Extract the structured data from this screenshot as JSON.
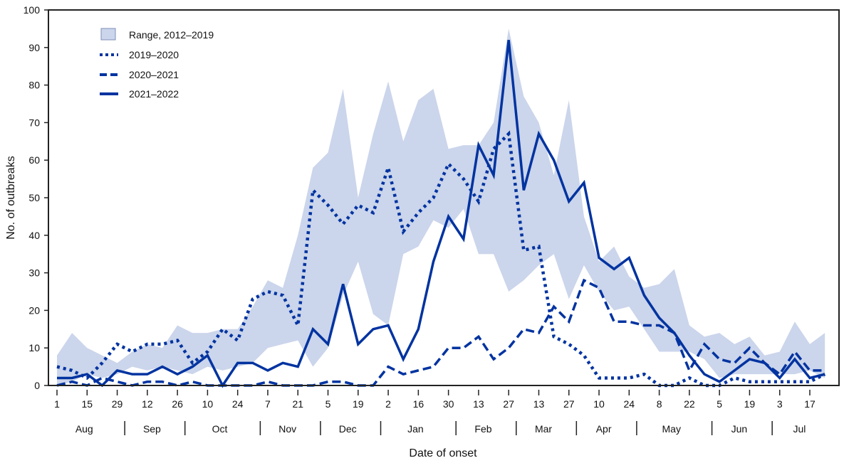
{
  "chart_data": {
    "type": "line",
    "xlabel": "Date of onset",
    "ylabel": "No. of outbreaks",
    "ylim": [
      0,
      100
    ],
    "yticks": [
      0,
      10,
      20,
      30,
      40,
      50,
      60,
      70,
      80,
      90,
      100
    ],
    "grid": false,
    "legend_position": "top-left",
    "x_tick_labels": [
      "1",
      "15",
      "29",
      "12",
      "26",
      "10",
      "24",
      "7",
      "21",
      "5",
      "19",
      "2",
      "16",
      "30",
      "13",
      "27",
      "13",
      "27",
      "10",
      "24",
      "8",
      "22",
      "5",
      "19",
      "3",
      "17"
    ],
    "months": [
      "Aug",
      "Sep",
      "Oct",
      "Nov",
      "Dec",
      "Jan",
      "Feb",
      "Mar",
      "Apr",
      "May",
      "Jun",
      "Jul"
    ],
    "x": [
      "Aug 1",
      "Aug 8",
      "Aug 15",
      "Aug 22",
      "Aug 29",
      "Sep 5",
      "Sep 12",
      "Sep 19",
      "Sep 26",
      "Oct 3",
      "Oct 10",
      "Oct 17",
      "Oct 24",
      "Oct 31",
      "Nov 7",
      "Nov 14",
      "Nov 21",
      "Nov 28",
      "Dec 5",
      "Dec 12",
      "Dec 19",
      "Dec 26",
      "Jan 2",
      "Jan 9",
      "Jan 16",
      "Jan 23",
      "Jan 30",
      "Feb 6",
      "Feb 13",
      "Feb 20",
      "Feb 27",
      "Mar 6",
      "Mar 13",
      "Mar 20",
      "Mar 27",
      "Apr 3",
      "Apr 10",
      "Apr 17",
      "Apr 24",
      "May 1",
      "May 8",
      "May 15",
      "May 22",
      "May 29",
      "Jun 5",
      "Jun 12",
      "Jun 19",
      "Jun 26",
      "Jul 3",
      "Jul 10",
      "Jul 17",
      "Jul 24"
    ],
    "range": {
      "name": "Range, 2012–2019",
      "color": "#cbd5eb",
      "max": [
        8,
        14,
        10,
        8,
        6,
        9,
        11,
        10,
        16,
        14,
        14,
        15,
        15,
        21,
        28,
        26,
        40,
        58,
        62,
        79,
        50,
        67,
        81,
        65,
        76,
        79,
        63,
        64,
        64,
        70,
        95,
        77,
        70,
        56,
        76,
        45,
        33,
        37,
        29,
        26,
        27,
        31,
        16,
        13,
        14,
        11,
        13,
        8,
        9,
        17,
        11,
        14
      ],
      "min": [
        0,
        1,
        3,
        2,
        3,
        5,
        4,
        5,
        4,
        3,
        5,
        4,
        5,
        6,
        10,
        11,
        12,
        5,
        10,
        24,
        33,
        19,
        16,
        35,
        37,
        44,
        42,
        47,
        35,
        35,
        25,
        28,
        32,
        35,
        23,
        32,
        25,
        20,
        21,
        15,
        9,
        9,
        9,
        7,
        2,
        3,
        3,
        3,
        3,
        3,
        4,
        2
      ]
    },
    "series": [
      {
        "name": "2019–2020",
        "style": "dotted",
        "color": "#0033a0",
        "values": [
          5,
          4,
          2,
          6,
          11,
          9,
          11,
          11,
          12,
          6,
          9,
          15,
          12,
          23,
          25,
          24,
          16,
          52,
          48,
          43,
          48,
          46,
          58,
          41,
          46,
          50,
          59,
          55,
          49,
          63,
          67,
          36,
          37,
          13,
          11,
          8,
          2,
          2,
          2,
          3,
          0,
          0,
          2,
          0,
          0,
          2,
          1,
          1,
          1,
          1,
          1,
          3
        ]
      },
      {
        "name": "2020–2021",
        "style": "dashed",
        "color": "#0033a0",
        "values": [
          0,
          1,
          0,
          2,
          1,
          0,
          1,
          1,
          0,
          1,
          0,
          0,
          0,
          0,
          1,
          0,
          0,
          0,
          1,
          1,
          0,
          0,
          5,
          3,
          4,
          5,
          10,
          10,
          13,
          7,
          10,
          15,
          14,
          21,
          17,
          28,
          26,
          17,
          17,
          16,
          16,
          14,
          4,
          11,
          7,
          6,
          10,
          6,
          3,
          9,
          4,
          4
        ]
      },
      {
        "name": "2021–2022",
        "style": "solid",
        "color": "#0033a0",
        "values": [
          2,
          2,
          3,
          0,
          4,
          3,
          3,
          5,
          3,
          5,
          8,
          0,
          6,
          6,
          4,
          6,
          5,
          15,
          11,
          27,
          11,
          15,
          16,
          7,
          15,
          33,
          45,
          39,
          64,
          56,
          92,
          52,
          67,
          60,
          49,
          54,
          34,
          31,
          34,
          24,
          18,
          14,
          8,
          3,
          1,
          4,
          7,
          6,
          2,
          7,
          2,
          3
        ]
      }
    ]
  }
}
